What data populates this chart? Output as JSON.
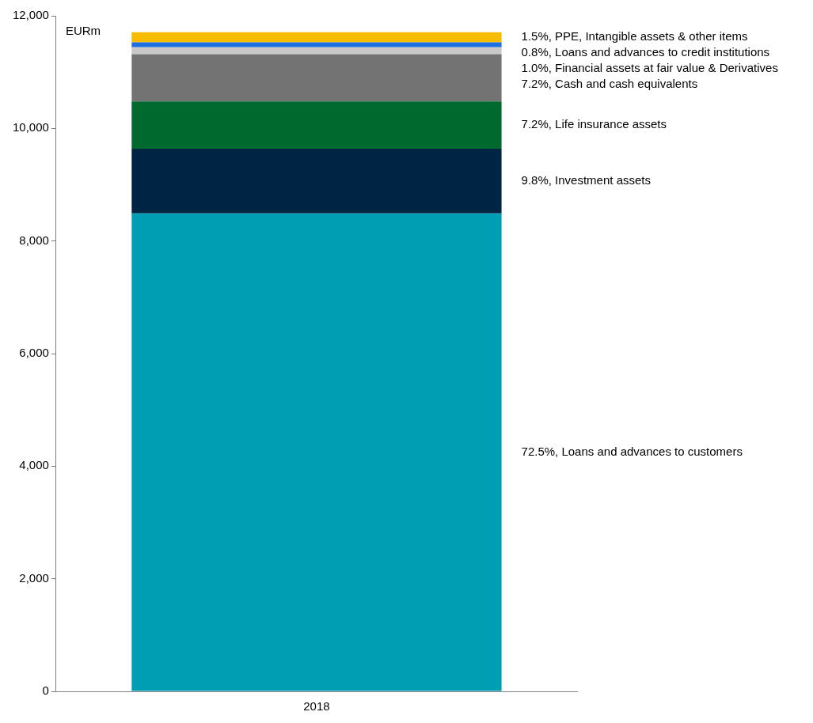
{
  "chart_data": {
    "type": "bar",
    "stacked": true,
    "ylabel": "EURm",
    "categories": [
      "2018"
    ],
    "series": [
      {
        "name": "72.5%, Loans and advances to customers",
        "color": "#009eb3",
        "values": [
          8490
        ]
      },
      {
        "name": "9.8%, Investment assets",
        "color": "#002444",
        "values": [
          1150
        ]
      },
      {
        "name": "7.2%, Life insurance assets",
        "color": "#006a2e",
        "values": [
          840
        ]
      },
      {
        "name": "7.2%, Cash and cash equivalents",
        "color": "#737373",
        "values": [
          840
        ]
      },
      {
        "name": "1.0%, Financial assets at fair value & Derivatives",
        "color": "#c8c8c8",
        "values": [
          120
        ]
      },
      {
        "name": "0.8%, Loans and advances to credit institutions",
        "color": "#1e6fe0",
        "values": [
          90
        ]
      },
      {
        "name": "1.5%, PPE, Intangible assets & other items",
        "color": "#f7bc00",
        "values": [
          180
        ]
      }
    ],
    "ylim": [
      0,
      12000
    ],
    "yticks": [
      {
        "value": 0,
        "label": "0"
      },
      {
        "value": 2000,
        "label": "2,000"
      },
      {
        "value": 4000,
        "label": "4,000"
      },
      {
        "value": 6000,
        "label": "6,000"
      },
      {
        "value": 8000,
        "label": "8,000"
      },
      {
        "value": 10000,
        "label": "10,000"
      },
      {
        "value": 12000,
        "label": "12,000"
      }
    ],
    "grid": false,
    "legend": false
  }
}
